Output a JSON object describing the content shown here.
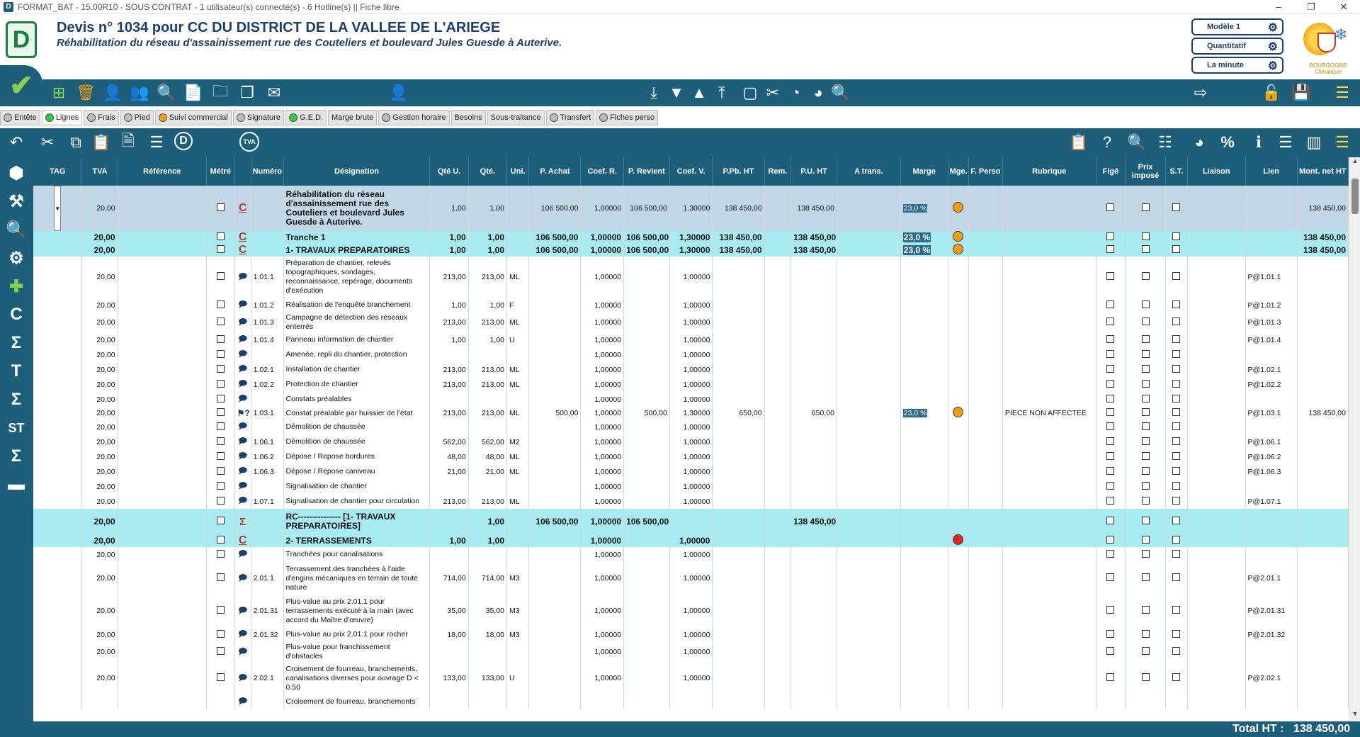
{
  "window": {
    "title": "FORMAT_BAT - 15.00R10 - SOUS CONTRAT - 1 utilisateur(s) connecté(s) - 6 Hotline(s) || Fiche libre"
  },
  "header": {
    "title": "Devis n° 1034 pour CC DU DISTRICT DE LA VALLEE DE L'ARIEGE",
    "subtitle": "Réhabilitation du réseau d'assainissement rue des Couteliers et boulevard Jules Guesde à Auterive.",
    "mode_buttons": [
      "Modèle 1",
      "Quantitatif",
      "La minute"
    ],
    "brand_text": [
      "BOURGOGNE",
      "Climatique"
    ]
  },
  "tabs": [
    {
      "label": "Entête",
      "dot": "#bbbbbb"
    },
    {
      "label": "Lignes",
      "dot": "#2ecc40"
    },
    {
      "label": "Frais",
      "dot": "#bbbbbb"
    },
    {
      "label": "Pied",
      "dot": "#bbbbbb"
    },
    {
      "label": "Suivi commercial",
      "dot": "#f39c12"
    },
    {
      "label": "Signature",
      "dot": "#bbbbbb"
    },
    {
      "label": "G.E.D.",
      "dot": "#2ecc40"
    },
    {
      "label": "Marge brute",
      "dot": null
    },
    {
      "label": "Gestion horaire",
      "dot": "#bbbbbb"
    },
    {
      "label": "Besoins",
      "dot": null
    },
    {
      "label": "Sous-traitance",
      "dot": null
    },
    {
      "label": "Transfert",
      "dot": "#bbbbbb"
    },
    {
      "label": "Fiches perso",
      "dot": "#bbbbbb"
    }
  ],
  "toolbar2": {
    "tva_label": "TVA",
    "d_label": "D",
    "percent": "%"
  },
  "columns": [
    "TAG",
    "TVA",
    "Référence",
    "Métré",
    "",
    "Numéro",
    "Désignation",
    "Qté U.",
    "Qté.",
    "Uni.",
    "P. Achat",
    "Coef. R.",
    "P. Revient",
    "Coef. V.",
    "P.Pb. HT",
    "Rem.",
    "P.U. HT",
    "A trans.",
    "Marge",
    "Mge.",
    "F. Perso",
    "Rubrique",
    "Figé",
    "Prix imposé",
    "S.T.",
    "Liaison",
    "Lien",
    "Mont. net HT"
  ],
  "rows": [
    {
      "type": "root",
      "tva": "20,00",
      "icon": "C",
      "num": "",
      "des": "Réhabilitation du réseau d'assainissement rue des Couteliers et boulevard Jules Guesde à  Auterive.",
      "qteu": "1,00",
      "qte": "1,00",
      "uni": "",
      "pachat": "106 500,00",
      "coefr": "1,00000",
      "prev": "106 500,00",
      "coefv": "1,30000",
      "ppb": "138 450,00",
      "pu": "138 450,00",
      "marge": "23,0 %",
      "mge": "#f39c12",
      "rub": "",
      "lien": "",
      "mont": "138 450,00"
    },
    {
      "type": "chapter",
      "tva": "20,00",
      "icon": "C",
      "num": "",
      "des": "Tranche 1",
      "qteu": "1,00",
      "qte": "1,00",
      "uni": "",
      "pachat": "106 500,00",
      "coefr": "1,00000",
      "prev": "106 500,00",
      "coefv": "1,30000",
      "ppb": "138 450,00",
      "pu": "138 450,00",
      "marge": "23,0 %",
      "mge": "#f39c12",
      "rub": "",
      "lien": "",
      "mont": "138 450,00"
    },
    {
      "type": "chapter",
      "tva": "20,00",
      "icon": "C",
      "num": "",
      "des": "1- TRAVAUX PREPARATOIRES",
      "qteu": "1,00",
      "qte": "1,00",
      "uni": "",
      "pachat": "106 500,00",
      "coefr": "1,00000",
      "prev": "106 500,00",
      "coefv": "1,30000",
      "ppb": "138 450,00",
      "pu": "138 450,00",
      "marge": "23,0 %",
      "mge": "#f39c12",
      "rub": "",
      "lien": "",
      "mont": "138 450,00"
    },
    {
      "type": "line",
      "h": 58,
      "tva": "20,00",
      "icon": "bubble",
      "num": "1.01.1",
      "des": "Préparation de chantier, relevés topographiques, sondages, reconnaissance, repérage, documents d'exécution",
      "qteu": "213,00",
      "qte": "213,00",
      "uni": "ML",
      "pachat": "",
      "coefr": "1,00000",
      "prev": "",
      "coefv": "1,00000",
      "ppb": "",
      "pu": "",
      "marge": "",
      "mge": "",
      "rub": "",
      "lien": "P@1.01.1",
      "mont": ""
    },
    {
      "type": "line",
      "tva": "20,00",
      "icon": "bubble",
      "num": "1.01.2",
      "des": "Réalisation de l'enquête branchement",
      "qteu": "1,00",
      "qte": "1,00",
      "uni": "F",
      "pachat": "",
      "coefr": "1,00000",
      "prev": "",
      "coefv": "1,00000",
      "ppb": "",
      "pu": "",
      "marge": "",
      "mge": "",
      "rub": "",
      "lien": "P@1.01.2",
      "mont": ""
    },
    {
      "type": "line",
      "h": 28,
      "tva": "20,00",
      "icon": "bubble",
      "num": "1.01.3",
      "des": "Campagne de détection des réseaux enterrés",
      "qteu": "213,00",
      "qte": "213,00",
      "uni": "ML",
      "pachat": "",
      "coefr": "1,00000",
      "prev": "",
      "coefv": "1,00000",
      "ppb": "",
      "pu": "",
      "marge": "",
      "mge": "",
      "rub": "",
      "lien": "P@1.01.3",
      "mont": ""
    },
    {
      "type": "line",
      "tva": "20,00",
      "icon": "bubble",
      "num": "1.01.4",
      "des": "Panneau information de chantier",
      "qteu": "1,00",
      "qte": "1,00",
      "uni": "U",
      "pachat": "",
      "coefr": "1,00000",
      "prev": "",
      "coefv": "1,00000",
      "ppb": "",
      "pu": "",
      "marge": "",
      "mge": "",
      "rub": "",
      "lien": "P@1.01.4",
      "mont": ""
    },
    {
      "type": "line",
      "tva": "20,00",
      "icon": "bubble",
      "num": "",
      "des": "Amenée, repli du chantier, protection",
      "qteu": "",
      "qte": "",
      "uni": "",
      "pachat": "",
      "coefr": "1,00000",
      "prev": "",
      "coefv": "1,00000",
      "ppb": "",
      "pu": "",
      "marge": "",
      "mge": "",
      "rub": "",
      "lien": "",
      "mont": ""
    },
    {
      "type": "line",
      "tva": "20,00",
      "icon": "bubble",
      "num": "1.02.1",
      "des": "Installation de chantier",
      "qteu": "213,00",
      "qte": "213,00",
      "uni": "ML",
      "pachat": "",
      "coefr": "1,00000",
      "prev": "",
      "coefv": "1,00000",
      "ppb": "",
      "pu": "",
      "marge": "",
      "mge": "",
      "rub": "",
      "lien": "P@1.02.1",
      "mont": ""
    },
    {
      "type": "line",
      "tva": "20,00",
      "icon": "bubble",
      "num": "1.02.2",
      "des": "Protection de chantier",
      "qteu": "213,00",
      "qte": "213,00",
      "uni": "ML",
      "pachat": "",
      "coefr": "1,00000",
      "prev": "",
      "coefv": "1,00000",
      "ppb": "",
      "pu": "",
      "marge": "",
      "mge": "",
      "rub": "",
      "lien": "P@1.02.2",
      "mont": ""
    },
    {
      "type": "line",
      "tva": "20,00",
      "icon": "bubble",
      "num": "",
      "des": "Constats préalables",
      "qteu": "",
      "qte": "",
      "uni": "",
      "pachat": "",
      "coefr": "1,00000",
      "prev": "",
      "coefv": "1,00000",
      "ppb": "",
      "pu": "",
      "marge": "",
      "mge": "",
      "rub": "",
      "lien": "",
      "mont": ""
    },
    {
      "type": "line",
      "tva": "20,00",
      "icon": "help",
      "num": "1.03.1",
      "des": "Constat préalable par huissier de l'état",
      "qteu": "213,00",
      "qte": "213,00",
      "uni": "ML",
      "pachat": "500,00",
      "coefr": "1,00000",
      "prev": "500,00",
      "coefv": "1,30000",
      "ppb": "650,00",
      "pu": "650,00",
      "marge": "23,0 %",
      "mge": "#f39c12",
      "rub": "PIECE NON AFFECTEE",
      "lien": "P@1.03.1",
      "mont": "138 450,00"
    },
    {
      "type": "line",
      "tva": "20,00",
      "icon": "bubble",
      "num": "",
      "des": "Démolition de chaussée",
      "qteu": "",
      "qte": "",
      "uni": "",
      "pachat": "",
      "coefr": "1,00000",
      "prev": "",
      "coefv": "1,00000",
      "ppb": "",
      "pu": "",
      "marge": "",
      "mge": "",
      "rub": "",
      "lien": "",
      "mont": ""
    },
    {
      "type": "line",
      "tva": "20,00",
      "icon": "bubble",
      "num": "1.06.1",
      "des": "Démolition de chaussée",
      "qteu": "562,00",
      "qte": "562,00",
      "uni": "M2",
      "pachat": "",
      "coefr": "1,00000",
      "prev": "",
      "coefv": "1,00000",
      "ppb": "",
      "pu": "",
      "marge": "",
      "mge": "",
      "rub": "",
      "lien": "P@1.06.1",
      "mont": ""
    },
    {
      "type": "line",
      "tva": "20,00",
      "icon": "bubble",
      "num": "1.06.2",
      "des": "Dépose / Repose bordures",
      "qteu": "48,00",
      "qte": "48,00",
      "uni": "ML",
      "pachat": "",
      "coefr": "1,00000",
      "prev": "",
      "coefv": "1,00000",
      "ppb": "",
      "pu": "",
      "marge": "",
      "mge": "",
      "rub": "",
      "lien": "P@1.06.2",
      "mont": ""
    },
    {
      "type": "line",
      "tva": "20,00",
      "icon": "bubble",
      "num": "1.06.3",
      "des": "Dépose / Repose caniveau",
      "qteu": "21,00",
      "qte": "21,00",
      "uni": "ML",
      "pachat": "",
      "coefr": "1,00000",
      "prev": "",
      "coefv": "1,00000",
      "ppb": "",
      "pu": "",
      "marge": "",
      "mge": "",
      "rub": "",
      "lien": "P@1.06.3",
      "mont": ""
    },
    {
      "type": "line",
      "tva": "20,00",
      "icon": "bubble",
      "num": "",
      "des": "Signalisation de chantier",
      "qteu": "",
      "qte": "",
      "uni": "",
      "pachat": "",
      "coefr": "1,00000",
      "prev": "",
      "coefv": "1,00000",
      "ppb": "",
      "pu": "",
      "marge": "",
      "mge": "",
      "rub": "",
      "lien": "",
      "mont": ""
    },
    {
      "type": "line",
      "tva": "20,00",
      "icon": "bubble",
      "num": "1.07.1",
      "des": "Signalisation de chantier pour circulation",
      "qteu": "213,00",
      "qte": "213,00",
      "uni": "ML",
      "pachat": "",
      "coefr": "1,00000",
      "prev": "",
      "coefv": "1,00000",
      "ppb": "",
      "pu": "",
      "marge": "",
      "mge": "",
      "rub": "",
      "lien": "P@1.07.1",
      "mont": ""
    },
    {
      "type": "chapter",
      "h": 36,
      "tva": "20,00",
      "icon": "sigma",
      "num": "",
      "des": "RC--------------- [1- TRAVAUX PREPARATOIRES]",
      "qteu": "",
      "qte": "1,00",
      "uni": "",
      "pachat": "106 500,00",
      "coefr": "1,00000",
      "prev": "106 500,00",
      "coefv": "",
      "ppb": "",
      "pu": "138 450,00",
      "marge": "",
      "mge": "",
      "rub": "",
      "lien": "",
      "mont": ""
    },
    {
      "type": "chapter",
      "tva": "20,00",
      "icon": "C",
      "num": "",
      "des": "2- TERRASSEMENTS",
      "qteu": "1,00",
      "qte": "1,00",
      "uni": "",
      "pachat": "",
      "coefr": "1,00000",
      "prev": "",
      "coefv": "1,00000",
      "ppb": "",
      "pu": "",
      "marge": "",
      "mge": "#e62020",
      "rub": "",
      "lien": "",
      "mont": ""
    },
    {
      "type": "line",
      "tva": "20,00",
      "icon": "bubble",
      "num": "",
      "des": "Tranchées pour canalisations",
      "qteu": "",
      "qte": "",
      "uni": "",
      "pachat": "",
      "coefr": "1,00000",
      "prev": "",
      "coefv": "1,00000",
      "ppb": "",
      "pu": "",
      "marge": "",
      "mge": "",
      "rub": "",
      "lien": "",
      "mont": ""
    },
    {
      "type": "line",
      "h": 46,
      "tva": "20,00",
      "icon": "bubble",
      "num": "2.01.1",
      "des": "Terrassement des tranchées à l'aide d'engins mécaniques en terrain de toute nature",
      "qteu": "714,00",
      "qte": "714,00",
      "uni": "M3",
      "pachat": "",
      "coefr": "1,00000",
      "prev": "",
      "coefv": "1,00000",
      "ppb": "",
      "pu": "",
      "marge": "",
      "mge": "",
      "rub": "",
      "lien": "P@2.01.1",
      "mont": ""
    },
    {
      "type": "line",
      "h": 46,
      "tva": "20,00",
      "icon": "bubble",
      "num": "2.01.31",
      "des": "Plus-value au prix 2.01.1 pour terrassements exécuté à la main (avec accord du Maître d'œuvre)",
      "qteu": "35,00",
      "qte": "35,00",
      "uni": "M3",
      "pachat": "",
      "coefr": "1,00000",
      "prev": "",
      "coefv": "1,00000",
      "ppb": "",
      "pu": "",
      "marge": "",
      "mge": "",
      "rub": "",
      "lien": "P@2.01.31",
      "mont": ""
    },
    {
      "type": "line",
      "tva": "20,00",
      "icon": "bubble",
      "num": "2.01.32",
      "des": "Plus-value au prix 2.01.1 pour rocher",
      "qteu": "18,00",
      "qte": "18,00",
      "uni": "M3",
      "pachat": "",
      "coefr": "1,00000",
      "prev": "",
      "coefv": "1,00000",
      "ppb": "",
      "pu": "",
      "marge": "",
      "mge": "",
      "rub": "",
      "lien": "P@2.01.32",
      "mont": ""
    },
    {
      "type": "line",
      "h": 28,
      "tva": "20,00",
      "icon": "bubble",
      "num": "",
      "des": "Plus-value pour franchissement d'obstacles",
      "qteu": "",
      "qte": "",
      "uni": "",
      "pachat": "",
      "coefr": "1,00000",
      "prev": "",
      "coefv": "1,00000",
      "ppb": "",
      "pu": "",
      "marge": "",
      "mge": "",
      "rub": "",
      "lien": "",
      "mont": ""
    },
    {
      "type": "line",
      "h": 46,
      "tva": "20,00",
      "icon": "bubble",
      "num": "2.02.1",
      "des": "Croisement de fourreau, branchements, canalisations diverses pour ouvrage D < 0.50",
      "qteu": "133,00",
      "qte": "133,00",
      "uni": "U",
      "pachat": "",
      "coefr": "1,00000",
      "prev": "",
      "coefv": "1,00000",
      "ppb": "",
      "pu": "",
      "marge": "",
      "mge": "",
      "rub": "",
      "lien": "P@2.02.1",
      "mont": ""
    },
    {
      "type": "line",
      "h": 20,
      "tva": "",
      "icon": "bubble",
      "num": "",
      "des": "Croisement de fourreau, branchements",
      "qteu": "",
      "qte": "",
      "uni": "",
      "pachat": "",
      "coefr": "",
      "prev": "",
      "coefv": "",
      "ppb": "",
      "pu": "",
      "marge": "",
      "mge": "",
      "rub": "",
      "lien": "",
      "mont": ""
    }
  ],
  "footer": {
    "total_label": "Total HT :",
    "total_value": "138 450,00"
  }
}
